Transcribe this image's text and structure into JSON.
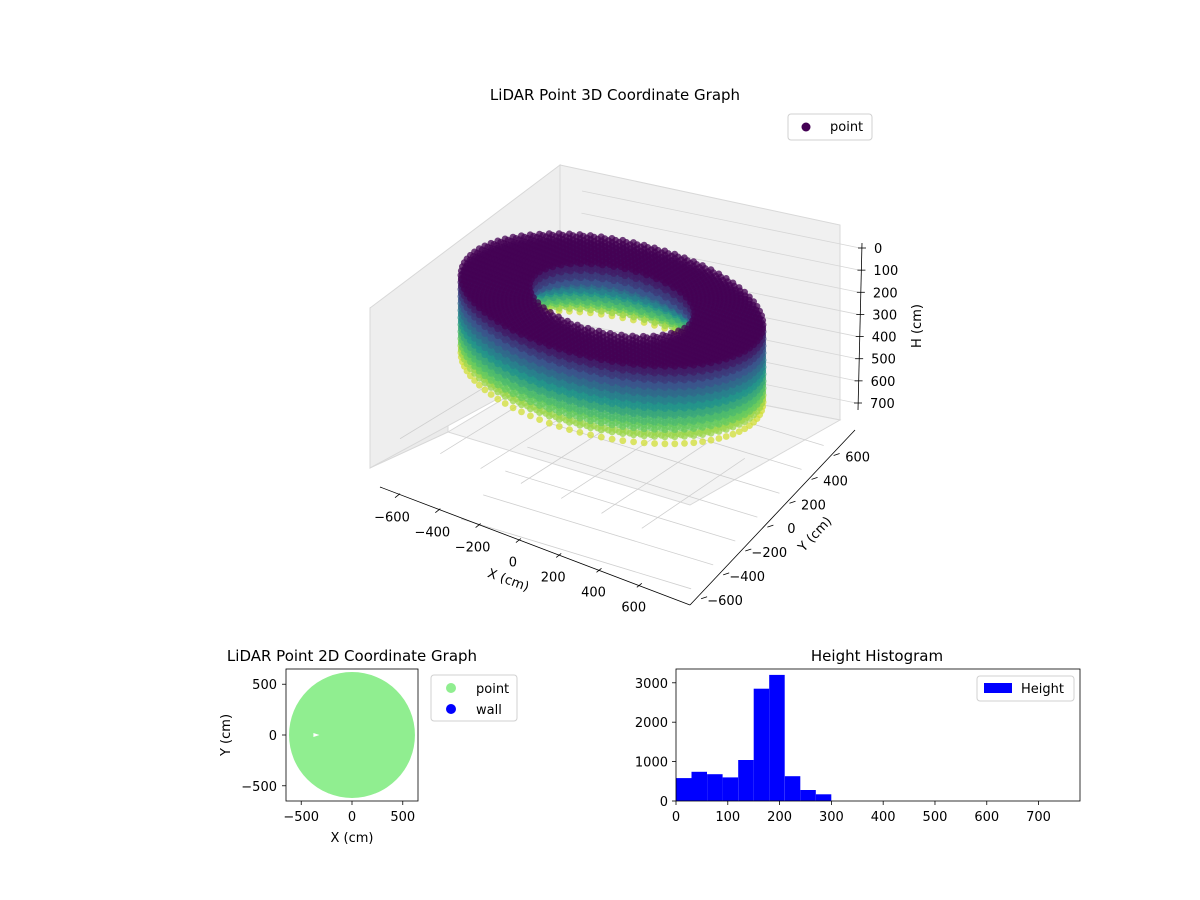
{
  "colors": {
    "viridis_dark": "#440154",
    "viridis_mid": "#21918c",
    "viridis_light": "#fde725",
    "scatter2d_point": "#90ee90",
    "scatter2d_wall": "#0000ff",
    "histogram_bar": "#0000ff"
  },
  "chart_data": [
    {
      "type": "scatter",
      "projection": "3d",
      "title": "LiDAR Point 3D Coordinate Graph",
      "xlabel": "X (cm)",
      "ylabel": "Y (cm)",
      "zlabel": "H (cm)",
      "x_ticks": [
        "−600",
        "−400",
        "−200",
        "0",
        "200",
        "400",
        "600"
      ],
      "y_ticks": [
        "−600",
        "−400",
        "−200",
        "0",
        "200",
        "400",
        "600"
      ],
      "z_ticks": [
        "0",
        "100",
        "200",
        "300",
        "400",
        "500",
        "600",
        "700"
      ],
      "xlim": [
        -650,
        650
      ],
      "ylim": [
        -650,
        650
      ],
      "zlim": [
        750,
        0
      ],
      "z_inverted": true,
      "colormap": "viridis",
      "legend": [
        "point"
      ],
      "legend_position": "upper-right",
      "grid": true,
      "description_shape": "ring of points, outer radius ~600 cm, inner radius ~330 cm, heights ~0-300 cm"
    },
    {
      "type": "scatter",
      "title": "LiDAR Point 2D Coordinate Graph",
      "xlabel": "X (cm)",
      "ylabel": "Y (cm)",
      "x_ticks": [
        "−500",
        "0",
        "500"
      ],
      "y_ticks": [
        "−500",
        "0",
        "500"
      ],
      "xlim": [
        -650,
        650
      ],
      "ylim": [
        -650,
        650
      ],
      "legend": [
        "point",
        "wall"
      ],
      "legend_position": "outside-right",
      "series": [
        {
          "name": "point",
          "shape": "filled disk",
          "radius": 620,
          "center": [
            0,
            0
          ]
        },
        {
          "name": "wall",
          "count": 0
        }
      ]
    },
    {
      "type": "bar",
      "subtype": "histogram",
      "title": "Height Histogram",
      "x_ticks": [
        "0",
        "100",
        "200",
        "300",
        "400",
        "500",
        "600",
        "700"
      ],
      "y_ticks": [
        "0",
        "1000",
        "2000",
        "3000"
      ],
      "xlim": [
        0,
        780
      ],
      "ylim": [
        0,
        3350
      ],
      "legend": [
        "Height"
      ],
      "legend_position": "upper-right",
      "bins": [
        {
          "x0": 0,
          "x1": 30,
          "count": 580
        },
        {
          "x0": 30,
          "x1": 60,
          "count": 740
        },
        {
          "x0": 60,
          "x1": 90,
          "count": 680
        },
        {
          "x0": 90,
          "x1": 120,
          "count": 600
        },
        {
          "x0": 120,
          "x1": 150,
          "count": 1040
        },
        {
          "x0": 150,
          "x1": 180,
          "count": 2850
        },
        {
          "x0": 180,
          "x1": 210,
          "count": 3200
        },
        {
          "x0": 210,
          "x1": 240,
          "count": 630
        },
        {
          "x0": 240,
          "x1": 270,
          "count": 280
        },
        {
          "x0": 270,
          "x1": 300,
          "count": 170
        }
      ]
    }
  ]
}
